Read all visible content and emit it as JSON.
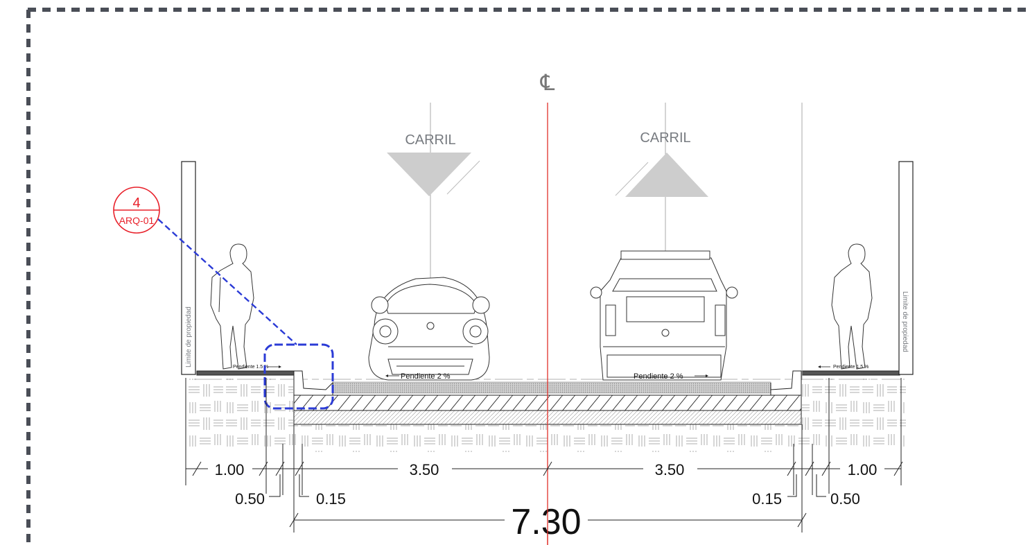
{
  "centerline_symbol": "℄",
  "lanes": [
    {
      "label": "CARRIL",
      "direction": "down"
    },
    {
      "label": "CARRIL",
      "direction": "up"
    }
  ],
  "property_limit_left": "Limite de propiedad",
  "property_limit_right": "Limite de propiedad",
  "slopes": {
    "sidewalk_left": "Pendiente 1.5 %",
    "sidewalk_right": "Pendiente 1.5 %",
    "lane_left": "Pendiente 2 %",
    "lane_right": "Pendiente 2 %"
  },
  "section_callout": {
    "number": "4",
    "sheet": "ARQ-01"
  },
  "dimensions": {
    "sidewalk_left": "1.00",
    "sidewalk_right": "1.00",
    "planter_left": "0.50",
    "planter_right": "0.50",
    "curb_left": "0.15",
    "curb_right": "0.15",
    "lane_left": "3.50",
    "lane_right": "3.50",
    "total": "7.30"
  },
  "colors": {
    "centerline": "#e0302a",
    "callout": "#e8202a",
    "callout_leader": "#2b3bd6",
    "frame": "#4a4e57",
    "lines": "#222222",
    "lane_arrow": "#cdcdcd"
  }
}
